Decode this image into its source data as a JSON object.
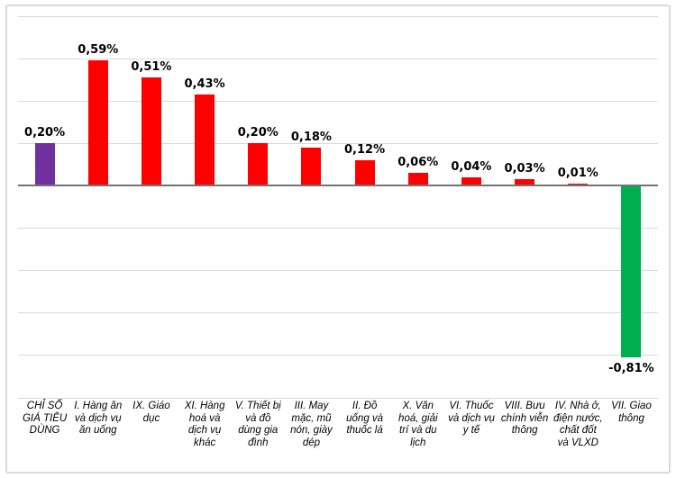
{
  "chart_data": {
    "type": "bar",
    "title": "",
    "xlabel": "",
    "ylabel": "",
    "legend": "none",
    "grid": true,
    "ylim": [
      -1.0,
      0.8
    ],
    "grid_step": 0.2,
    "categories": [
      "CHỈ SỐ GIÁ TIÊU DÙNG",
      "I. Hàng ăn và dịch vụ ăn uống",
      "IX. Giáo dục",
      "XI. Hàng hoá và dịch vụ khác",
      "V. Thiết bị và đồ dùng gia đình",
      "III. May mặc, mũ nón, giày dép",
      "II. Đồ uống và thuốc lá",
      "X. Văn hoá, giải trí và du lịch",
      "VI. Thuốc và dịch vụ y tế",
      "VIII. Bưu chính viễn thông",
      "IV. Nhà ở, điện nước, chất đốt và VLXD",
      "VII. Giao thông"
    ],
    "values": [
      0.2,
      0.59,
      0.51,
      0.43,
      0.2,
      0.18,
      0.12,
      0.06,
      0.04,
      0.03,
      0.01,
      -0.81
    ],
    "value_labels": [
      "0,20%",
      "0,59%",
      "0,51%",
      "0,43%",
      "0,20%",
      "0,18%",
      "0,12%",
      "0,06%",
      "0,04%",
      "0,03%",
      "0,01%",
      "-0,81%"
    ],
    "bar_colors": [
      "#7030A0",
      "#FF0000",
      "#FF0000",
      "#FF0000",
      "#FF0000",
      "#FF0000",
      "#FF0000",
      "#FF0000",
      "#FF0000",
      "#FF0000",
      "#FF0000",
      "#00B050"
    ]
  },
  "colors": {
    "highlight_purple": "#7030A0",
    "positive_red": "#FF0000",
    "negative_green": "#00B050",
    "gridline": "#D9D9D9",
    "axis_line": "#737373",
    "frame_border": "#D9D9D9",
    "background": "#FFFFFF",
    "label_text": "#000000"
  }
}
